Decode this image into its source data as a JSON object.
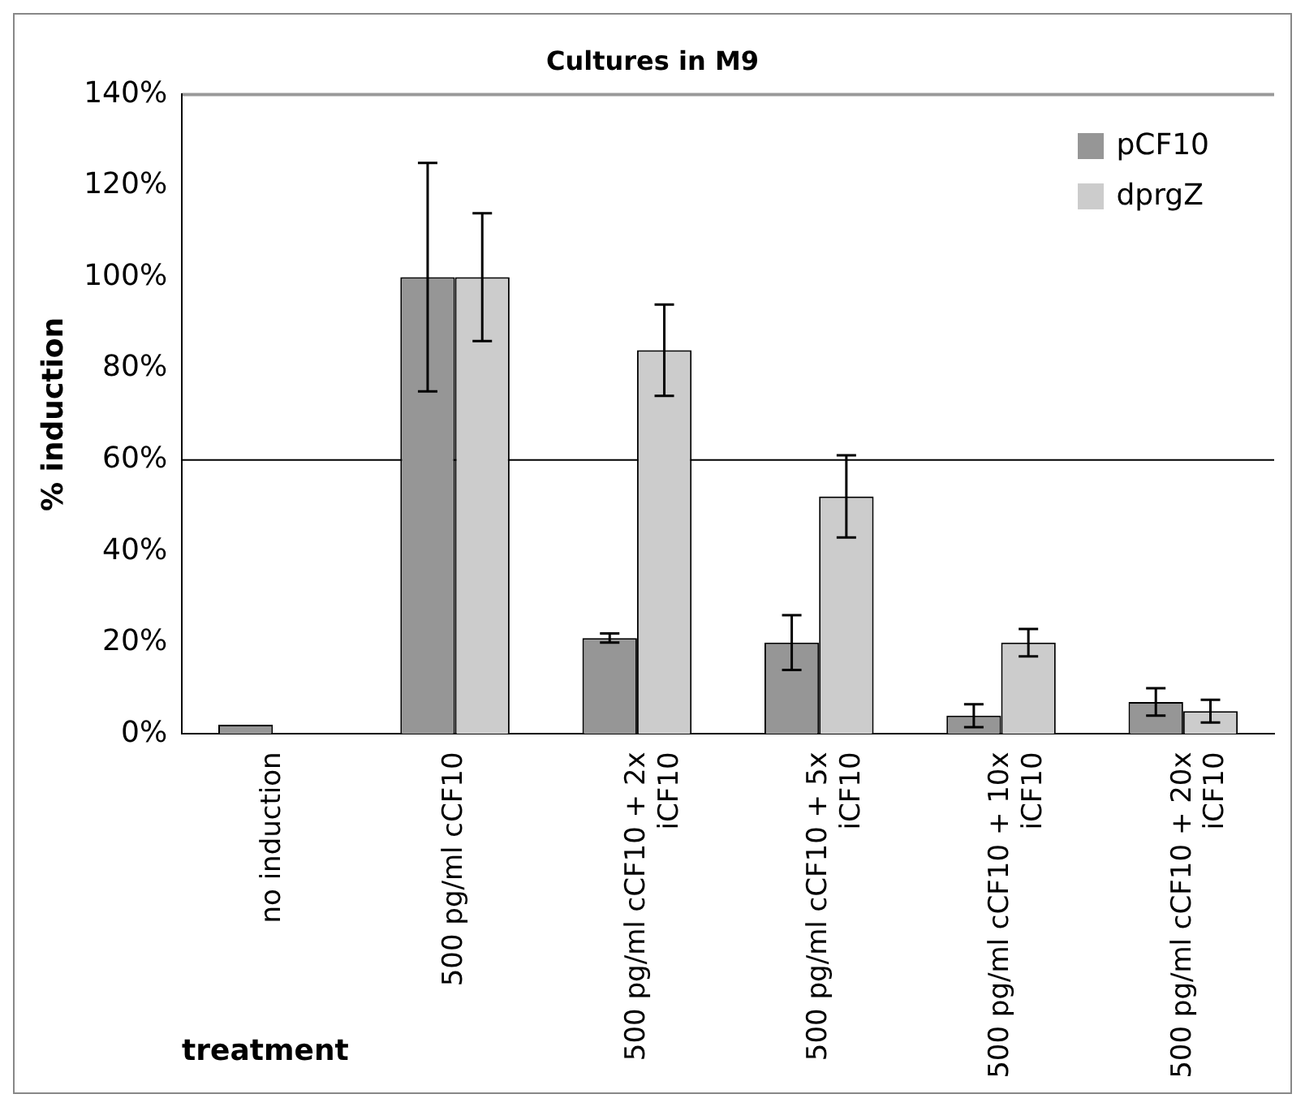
{
  "chart_data": {
    "type": "bar",
    "title": "Cultures in M9",
    "xlabel": "treatment",
    "ylabel": "% induction",
    "categories": [
      "no induction",
      "500 pg/ml cCF10",
      "500 pg/ml cCF10 + 2x iCF10",
      "500 pg/ml cCF10 + 5x iCF10",
      "500 pg/ml cCF10 + 10x iCF10",
      "500 pg/ml cCF10 + 20x iCF10"
    ],
    "series": [
      {
        "name": "pCF10",
        "color": "#969696",
        "values": [
          2,
          100,
          21,
          20,
          4,
          7
        ],
        "errors": [
          null,
          25,
          1,
          6,
          2.5,
          3
        ]
      },
      {
        "name": "dprgZ",
        "color": "#cccccc",
        "values": [
          0,
          100,
          84,
          52,
          20,
          5
        ],
        "errors": [
          null,
          14,
          10,
          9,
          3,
          2.5
        ]
      }
    ],
    "ylim": [
      0,
      140
    ],
    "yticks": [
      {
        "value": 0,
        "label": "0%"
      },
      {
        "value": 20,
        "label": "20%"
      },
      {
        "value": 40,
        "label": "40%"
      },
      {
        "value": 60,
        "label": "60%"
      },
      {
        "value": 80,
        "label": "80%"
      },
      {
        "value": 100,
        "label": "100%"
      },
      {
        "value": 120,
        "label": "120%"
      },
      {
        "value": 140,
        "label": "140%"
      }
    ],
    "ref_lines": [
      {
        "axis": "y",
        "value": 60,
        "color": "#000000"
      }
    ],
    "grid": false,
    "legend": "top right"
  }
}
